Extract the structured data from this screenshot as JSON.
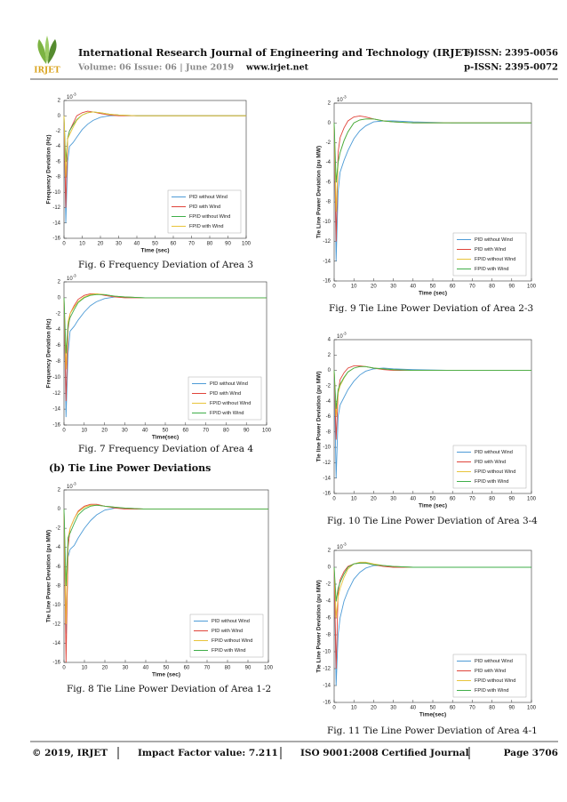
{
  "header": {
    "logo": "IRJET",
    "journal": "International Research Journal of Engineering and Technology (IRJET)",
    "eissn": "e-ISSN: 2395-0056",
    "volume": "Volume: 06 Issue: 06 | June 2019",
    "website": "www.irjet.net",
    "pissn": "p-ISSN: 2395-0072"
  },
  "section_heading": "(b) Tie Line Power Deviations",
  "footer": {
    "copyright": "© 2019, IRJET",
    "impact": "Impact Factor value: 7.211",
    "iso": "ISO 9001:2008 Certified Journal",
    "page": "Page 3706"
  },
  "chart_data": [
    {
      "type": "line",
      "caption": "Fig. 6 Frequency Deviation of Area 3",
      "xlabel": "Time (sec)",
      "ylabel": "Frequency Deviation (Hz)",
      "y_multiplier": {
        "base": "10",
        "exponent": "-3"
      },
      "x": [
        0,
        1,
        2,
        3,
        5,
        7,
        10,
        13,
        16,
        20,
        25,
        30,
        40,
        60,
        100
      ],
      "xlim": [
        0,
        100
      ],
      "xticks": [
        0,
        10,
        20,
        30,
        40,
        50,
        60,
        70,
        80,
        90,
        100
      ],
      "ylim": [
        -16,
        2
      ],
      "yticks": [
        -16,
        -14,
        -12,
        -10,
        -8,
        -6,
        -4,
        -2,
        0,
        2
      ],
      "legend": "lower right",
      "series": [
        {
          "name": "PID without Wind",
          "color": "#4d9bd6",
          "values": [
            0,
            -14,
            -6,
            -4,
            -3.5,
            -2.8,
            -1.8,
            -1.1,
            -0.6,
            -0.2,
            0,
            0.05,
            0,
            0,
            0
          ]
        },
        {
          "name": "PID with Wind",
          "color": "#e0443a",
          "values": [
            0,
            -12,
            -3,
            -2,
            -1,
            0,
            0.4,
            0.6,
            0.5,
            0.3,
            0.1,
            0,
            0,
            0,
            0
          ]
        },
        {
          "name": "FPID without Wind",
          "color": "#3fae49",
          "values": [
            0,
            -6,
            -3,
            -2,
            -1.2,
            -0.5,
            0.1,
            0.4,
            0.5,
            0.4,
            0.2,
            0.1,
            0,
            0,
            0
          ]
        },
        {
          "name": "FPID with Wind",
          "color": "#e8c43a",
          "values": [
            0,
            -8,
            -3,
            -2.5,
            -1.5,
            -0.6,
            0.1,
            0.4,
            0.5,
            0.4,
            0.2,
            0.1,
            0,
            0,
            0
          ]
        }
      ]
    },
    {
      "type": "line",
      "caption": "Fig. 7 Frequency Deviation of Area 4",
      "xlabel": "Time(sec)",
      "ylabel": "Frequency Deviation (Hz)",
      "y_multiplier": {
        "base": "10",
        "exponent": "-3"
      },
      "x": [
        0,
        1,
        2,
        3,
        5,
        7,
        10,
        13,
        16,
        20,
        25,
        30,
        40,
        60,
        100
      ],
      "xlim": [
        0,
        100
      ],
      "xticks": [
        0,
        10,
        20,
        30,
        40,
        50,
        60,
        70,
        80,
        90,
        100
      ],
      "ylim": [
        -16,
        2
      ],
      "yticks": [
        -16,
        -14,
        -12,
        -10,
        -8,
        -6,
        -4,
        -2,
        0,
        2
      ],
      "legend": "lower right",
      "series": [
        {
          "name": "PID without Wind",
          "color": "#4d9bd6",
          "values": [
            0,
            -15,
            -7,
            -4.2,
            -3.6,
            -2.8,
            -1.8,
            -1,
            -0.5,
            -0.1,
            0.1,
            0.1,
            0,
            0,
            0
          ]
        },
        {
          "name": "PID with Wind",
          "color": "#e0443a",
          "values": [
            0,
            -13,
            -4,
            -2,
            -1,
            -0.2,
            0.3,
            0.5,
            0.5,
            0.3,
            0.1,
            0,
            0,
            0,
            0
          ]
        },
        {
          "name": "FPID without Wind",
          "color": "#e8c43a",
          "values": [
            0,
            -9,
            -3,
            -2,
            -1.2,
            -0.5,
            0.1,
            0.4,
            0.5,
            0.4,
            0.2,
            0.1,
            0,
            0,
            0
          ]
        },
        {
          "name": "FPID with Wind",
          "color": "#3fae49",
          "values": [
            0,
            -7,
            -3.5,
            -2.5,
            -1.5,
            -0.6,
            0,
            0.3,
            0.4,
            0.4,
            0.2,
            0.1,
            0,
            0,
            0
          ]
        }
      ]
    },
    {
      "type": "line",
      "caption": "Fig. 8 Tie Line Power Deviation of Area 1-2",
      "xlabel": "Time (sec)",
      "ylabel": "Tie Line Power Deviation (pu MW)",
      "y_multiplier": {
        "base": "10",
        "exponent": "-3"
      },
      "x": [
        0,
        1,
        2,
        3,
        5,
        7,
        10,
        13,
        16,
        20,
        25,
        30,
        40,
        60,
        100
      ],
      "xlim": [
        0,
        100
      ],
      "xticks": [
        0,
        10,
        20,
        30,
        40,
        50,
        60,
        70,
        80,
        90,
        100
      ],
      "ylim": [
        -16,
        2
      ],
      "yticks": [
        -16,
        -14,
        -12,
        -10,
        -8,
        -6,
        -4,
        -2,
        0,
        2
      ],
      "legend": "lower right",
      "series": [
        {
          "name": "PID without Wind",
          "color": "#4d9bd6",
          "values": [
            0,
            -13,
            -5,
            -4.2,
            -3.8,
            -3,
            -2,
            -1.2,
            -0.6,
            -0.1,
            0.1,
            0.1,
            0,
            0,
            0
          ]
        },
        {
          "name": "PID with Wind",
          "color": "#e0443a",
          "values": [
            0,
            -16,
            -4,
            -2,
            -1,
            -0.2,
            0.3,
            0.5,
            0.5,
            0.3,
            0.1,
            0,
            0,
            0,
            0
          ]
        },
        {
          "name": "FPID without Wind",
          "color": "#e8c43a",
          "values": [
            0,
            -12,
            -3,
            -2,
            -1,
            -0.3,
            0.2,
            0.4,
            0.4,
            0.3,
            0.2,
            0.1,
            0,
            0,
            0
          ]
        },
        {
          "name": "FPID with Wind",
          "color": "#3fae49",
          "values": [
            0,
            -8,
            -3,
            -2.5,
            -1.5,
            -0.6,
            0,
            0.3,
            0.4,
            0.3,
            0.2,
            0.1,
            0,
            0,
            0
          ]
        }
      ]
    },
    {
      "type": "line",
      "caption": "Fig. 9 Tie Line Power Deviation of Area 2-3",
      "xlabel": "Time (sec)",
      "ylabel": "Tie Line Power Deviation (pu MW)",
      "y_multiplier": {
        "base": "10",
        "exponent": "-3"
      },
      "x": [
        0,
        1,
        2,
        3,
        5,
        7,
        10,
        13,
        16,
        20,
        25,
        30,
        40,
        60,
        100
      ],
      "xlim": [
        0,
        100
      ],
      "xticks": [
        0,
        10,
        20,
        30,
        40,
        50,
        60,
        70,
        80,
        90,
        100
      ],
      "ylim": [
        -16,
        2
      ],
      "yticks": [
        -16,
        -14,
        -12,
        -10,
        -8,
        -6,
        -4,
        -2,
        0,
        2
      ],
      "legend": "lower right",
      "series": [
        {
          "name": "PID without Wind",
          "color": "#4d9bd6",
          "values": [
            0,
            -14,
            -7,
            -5,
            -3.8,
            -2.8,
            -1.6,
            -0.8,
            -0.3,
            0.1,
            0.2,
            0.2,
            0.1,
            0,
            0
          ]
        },
        {
          "name": "PID with Wind",
          "color": "#e0443a",
          "values": [
            0,
            -12,
            -3,
            -1.5,
            -0.5,
            0.2,
            0.6,
            0.7,
            0.6,
            0.4,
            0.2,
            0.1,
            0,
            0,
            0
          ]
        },
        {
          "name": "FPID without Wind",
          "color": "#e8c43a",
          "values": [
            0,
            -9,
            -4,
            -3,
            -1.8,
            -0.9,
            0,
            0.3,
            0.4,
            0.4,
            0.2,
            0.1,
            0,
            0,
            0
          ]
        },
        {
          "name": "FPID with Wind",
          "color": "#3fae49",
          "values": [
            0,
            -6,
            -4,
            -3,
            -1.8,
            -0.9,
            0,
            0.3,
            0.4,
            0.4,
            0.2,
            0.1,
            0,
            0,
            0
          ]
        }
      ]
    },
    {
      "type": "line",
      "caption": "Fig. 10 Tie Line Power Deviation of Area 3-4",
      "xlabel": "Time (sec)",
      "ylabel": "Tie line Power Deviation (pu MW)",
      "y_multiplier": {
        "base": "10",
        "exponent": "-3"
      },
      "x": [
        0,
        1,
        2,
        3,
        5,
        7,
        10,
        13,
        16,
        20,
        25,
        30,
        40,
        60,
        100
      ],
      "xlim": [
        0,
        100
      ],
      "xticks": [
        0,
        10,
        20,
        30,
        40,
        50,
        60,
        70,
        80,
        90,
        100
      ],
      "ylim": [
        -16,
        4
      ],
      "yticks": [
        -16,
        -14,
        -12,
        -10,
        -8,
        -6,
        -4,
        -2,
        0,
        2,
        4
      ],
      "legend": "lower right",
      "series": [
        {
          "name": "PID without Wind",
          "color": "#4d9bd6",
          "values": [
            0,
            -14,
            -6,
            -4.5,
            -3.5,
            -2.5,
            -1.4,
            -0.6,
            -0.1,
            0.2,
            0.3,
            0.2,
            0.1,
            0,
            0
          ]
        },
        {
          "name": "PID with Wind",
          "color": "#e0443a",
          "values": [
            0,
            -9,
            -3,
            -1.2,
            -0.3,
            0.3,
            0.6,
            0.6,
            0.5,
            0.3,
            0.1,
            0,
            0,
            0,
            0
          ]
        },
        {
          "name": "FPID without Wind",
          "color": "#e8c43a",
          "values": [
            0,
            -6,
            -3,
            -2,
            -1,
            -0.2,
            0.3,
            0.5,
            0.5,
            0.3,
            0.2,
            0.1,
            0,
            0,
            0
          ]
        },
        {
          "name": "FPID with Wind",
          "color": "#3fae49",
          "values": [
            0,
            -5,
            -2.5,
            -1.8,
            -0.9,
            -0.2,
            0.3,
            0.5,
            0.5,
            0.3,
            0.2,
            0.1,
            0,
            0,
            0
          ]
        }
      ]
    },
    {
      "type": "line",
      "caption": "Fig. 11 Tie Line Power Deviation of Area 4-1",
      "xlabel": "Time(sec)",
      "ylabel": "Tie Line Power Deviation (pu MW)",
      "y_multiplier": {
        "base": "10",
        "exponent": "-3"
      },
      "x": [
        0,
        1,
        2,
        3,
        5,
        7,
        10,
        13,
        16,
        20,
        25,
        30,
        40,
        60,
        100
      ],
      "xlim": [
        0,
        100
      ],
      "xticks": [
        0,
        10,
        20,
        30,
        40,
        50,
        60,
        70,
        80,
        90,
        100
      ],
      "ylim": [
        -16,
        2
      ],
      "yticks": [
        -16,
        -14,
        -12,
        -10,
        -8,
        -6,
        -4,
        -2,
        0,
        2
      ],
      "legend": "lower right",
      "series": [
        {
          "name": "PID without Wind",
          "color": "#4d9bd6",
          "values": [
            0,
            -14,
            -8,
            -6,
            -4,
            -2.8,
            -1.4,
            -0.6,
            -0.1,
            0.2,
            0.2,
            0.1,
            0,
            0,
            0
          ]
        },
        {
          "name": "PID with Wind",
          "color": "#e0443a",
          "values": [
            0,
            -12,
            -3,
            -1.5,
            -0.5,
            0.1,
            0.4,
            0.5,
            0.5,
            0.3,
            0.1,
            0,
            0,
            0,
            0
          ]
        },
        {
          "name": "FPID without Wind",
          "color": "#e8c43a",
          "values": [
            0,
            -6,
            -3.5,
            -2.5,
            -1.2,
            -0.2,
            0.4,
            0.6,
            0.6,
            0.4,
            0.2,
            0.1,
            0,
            0,
            0
          ]
        },
        {
          "name": "FPID with Wind",
          "color": "#3fae49",
          "values": [
            0,
            -4,
            -2.5,
            -1.8,
            -0.8,
            0,
            0.4,
            0.5,
            0.5,
            0.3,
            0.2,
            0.1,
            0,
            0,
            0
          ]
        }
      ]
    }
  ]
}
